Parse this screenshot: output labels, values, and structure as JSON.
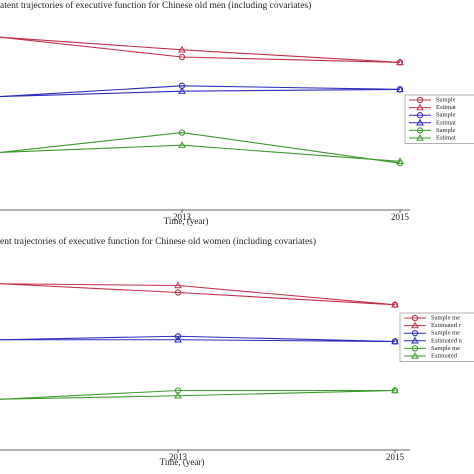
{
  "chart_data": [
    {
      "type": "line",
      "title": "atent trajectories of executive function for Chinese old men (including covariates)",
      "x_label": "Time, (year)",
      "categories": [
        null,
        "2013",
        "2015"
      ],
      "ylim": [
        0,
        100
      ],
      "series": [
        {
          "name": "Sample",
          "color": "#c0304a",
          "marker": "circle",
          "values": [
            96,
            85,
            82
          ]
        },
        {
          "name": "Estimat",
          "color": "#c0304a",
          "marker": "triangle",
          "values": [
            96,
            89,
            82
          ]
        },
        {
          "name": "Sample",
          "color": "#2b2bbd",
          "marker": "circle",
          "values": [
            63,
            69,
            67
          ]
        },
        {
          "name": "Estimat",
          "color": "#2b2bbd",
          "marker": "triangle",
          "values": [
            63,
            66,
            67
          ]
        },
        {
          "name": "Sample",
          "color": "#3a9a2a",
          "marker": "circle",
          "values": [
            32,
            43,
            26
          ]
        },
        {
          "name": "Estimat",
          "color": "#3a9a2a",
          "marker": "triangle",
          "values": [
            32,
            36,
            27
          ]
        }
      ]
    },
    {
      "type": "line",
      "title": "ent trajectories of executive function for Chinese old women (including covariates)",
      "x_label": "Time, (year)",
      "categories": [
        null,
        "2013",
        "2015"
      ],
      "ylim": [
        0,
        100
      ],
      "series": [
        {
          "name": "Sample me",
          "color": "#c0304a",
          "marker": "circle",
          "values": [
            95,
            90,
            83
          ]
        },
        {
          "name": "Estimated r",
          "color": "#c0304a",
          "marker": "triangle",
          "values": [
            95,
            94,
            83
          ]
        },
        {
          "name": "Sample me",
          "color": "#2b2bbd",
          "marker": "circle",
          "values": [
            63,
            65,
            62
          ]
        },
        {
          "name": "Estimated n",
          "color": "#2b2bbd",
          "marker": "triangle",
          "values": [
            63,
            63,
            62
          ]
        },
        {
          "name": "Sample me",
          "color": "#3a9a2a",
          "marker": "circle",
          "values": [
            29,
            34,
            34
          ]
        },
        {
          "name": "Estimated",
          "color": "#3a9a2a",
          "marker": "triangle",
          "values": [
            29,
            31,
            34
          ]
        }
      ]
    }
  ]
}
